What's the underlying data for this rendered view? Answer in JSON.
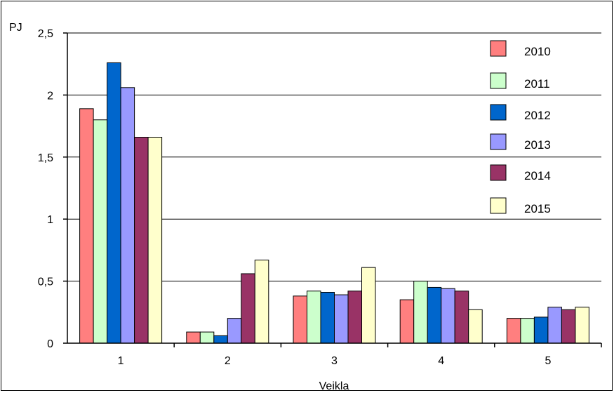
{
  "chart_data": {
    "type": "bar",
    "title": "",
    "xlabel": "Veikla",
    "ylabel": "PJ",
    "ylim": [
      0,
      2.5
    ],
    "yticks": [
      "0",
      "0,5",
      "1",
      "1,5",
      "2",
      "2,5"
    ],
    "ytick_values": [
      0,
      0.5,
      1,
      1.5,
      2,
      2.5
    ],
    "categories": [
      "1",
      "2",
      "3",
      "4",
      "5"
    ],
    "grid": true,
    "legend_position": "top-right",
    "series": [
      {
        "name": "2010",
        "color": "#FF7F7F",
        "values": [
          1.89,
          0.09,
          0.38,
          0.35,
          0.2
        ]
      },
      {
        "name": "2011",
        "color": "#CCFFCC",
        "values": [
          1.8,
          0.09,
          0.42,
          0.5,
          0.2
        ]
      },
      {
        "name": "2012",
        "color": "#0066CC",
        "values": [
          2.26,
          0.06,
          0.41,
          0.45,
          0.21
        ]
      },
      {
        "name": "2013",
        "color": "#9999FF",
        "values": [
          2.06,
          0.2,
          0.39,
          0.44,
          0.29
        ]
      },
      {
        "name": "2014",
        "color": "#993366",
        "values": [
          1.66,
          0.56,
          0.42,
          0.42,
          0.27
        ]
      },
      {
        "name": "2015",
        "color": "#FFFFCC",
        "values": [
          1.66,
          0.67,
          0.61,
          0.27,
          0.29
        ]
      }
    ]
  }
}
